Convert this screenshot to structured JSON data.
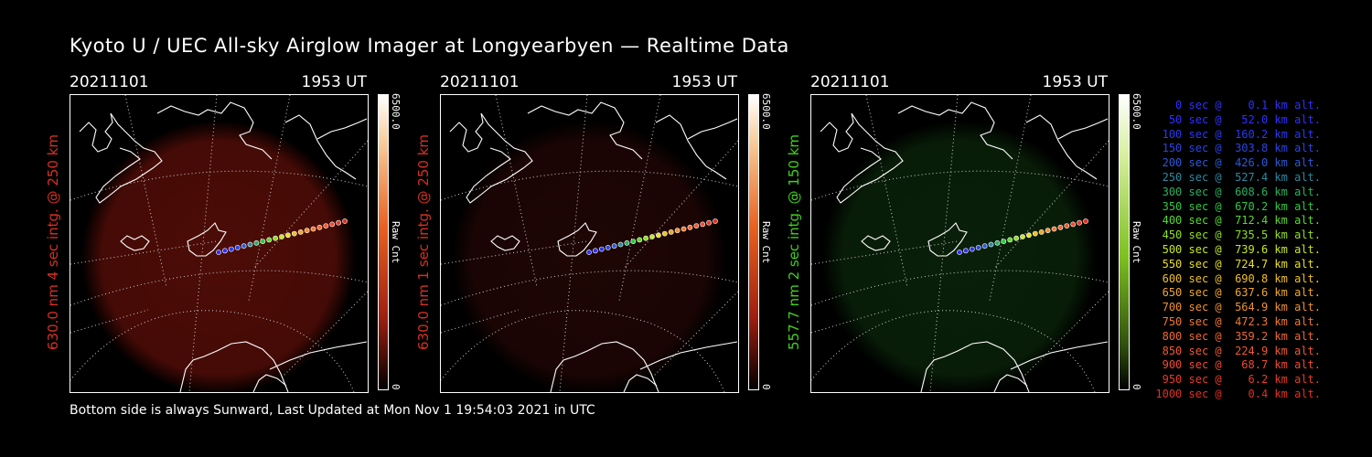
{
  "title": "Kyoto U / UEC All-sky Airglow Imager at Longyearbyen — Realtime Data",
  "panels": [
    {
      "date": "20211101",
      "time": "1953 UT",
      "ylabel": "630.0 nm 4 sec intg. @ 250 km",
      "label_color": "#d83020",
      "glow": "#5a0e08",
      "glow_opacity": 0.85,
      "cbar": "red",
      "cmax": "6500.0",
      "cmin": "0",
      "cunit": "Raw Cnt"
    },
    {
      "date": "20211101",
      "time": "1953 UT",
      "ylabel": "630.0 nm 1 sec intg. @ 250 km",
      "label_color": "#d83020",
      "glow": "#2a0806",
      "glow_opacity": 0.7,
      "cbar": "red",
      "cmax": "6500.0",
      "cmin": "0",
      "cunit": "Raw Cnt"
    },
    {
      "date": "20211101",
      "time": "1953 UT",
      "ylabel": "557.7 nm 2 sec intg. @ 150 km",
      "label_color": "#3fd21a",
      "glow": "#0c2a0c",
      "glow_opacity": 0.75,
      "cbar": "green",
      "cmax": "6500.0",
      "cmin": "0",
      "cunit": "Raw Cnt"
    }
  ],
  "legend": [
    {
      "text": "   0 sec @    0.1 km alt.",
      "color": "#3030ff"
    },
    {
      "text": "  50 sec @   52.0 km alt.",
      "color": "#3030ff"
    },
    {
      "text": " 100 sec @  160.2 km alt.",
      "color": "#2a3af0"
    },
    {
      "text": " 150 sec @  303.8 km alt.",
      "color": "#2a45e0"
    },
    {
      "text": " 200 sec @  426.0 km alt.",
      "color": "#2a5ad8"
    },
    {
      "text": " 250 sec @  527.4 km alt.",
      "color": "#2a8aa0"
    },
    {
      "text": " 300 sec @  608.6 km alt.",
      "color": "#2ab060"
    },
    {
      "text": " 350 sec @  670.2 km alt.",
      "color": "#30c840"
    },
    {
      "text": " 400 sec @  712.4 km alt.",
      "color": "#5ad830"
    },
    {
      "text": " 450 sec @  735.5 km alt.",
      "color": "#90e020"
    },
    {
      "text": " 500 sec @  739.6 km alt.",
      "color": "#c8e820"
    },
    {
      "text": " 550 sec @  724.7 km alt.",
      "color": "#e8e020"
    },
    {
      "text": " 600 sec @  690.8 km alt.",
      "color": "#f0c020"
    },
    {
      "text": " 650 sec @  637.6 km alt.",
      "color": "#f0a828"
    },
    {
      "text": " 700 sec @  564.9 km alt.",
      "color": "#f09030"
    },
    {
      "text": " 750 sec @  472.3 km alt.",
      "color": "#f07830"
    },
    {
      "text": " 800 sec @  359.2 km alt.",
      "color": "#f06830"
    },
    {
      "text": " 850 sec @  224.9 km alt.",
      "color": "#f05a30"
    },
    {
      "text": " 900 sec @   68.7 km alt.",
      "color": "#f04a30"
    },
    {
      "text": " 950 sec @    6.2 km alt.",
      "color": "#e83a28"
    },
    {
      "text": "1000 sec @    0.4 km alt.",
      "color": "#e03020"
    }
  ],
  "footer": "Bottom side is always Sunward, Last Updated at Mon Nov  1 19:54:03 2021 in UTC",
  "colors": {
    "background": "#000000",
    "text": "#ffffff",
    "coast": "#ffffff"
  }
}
